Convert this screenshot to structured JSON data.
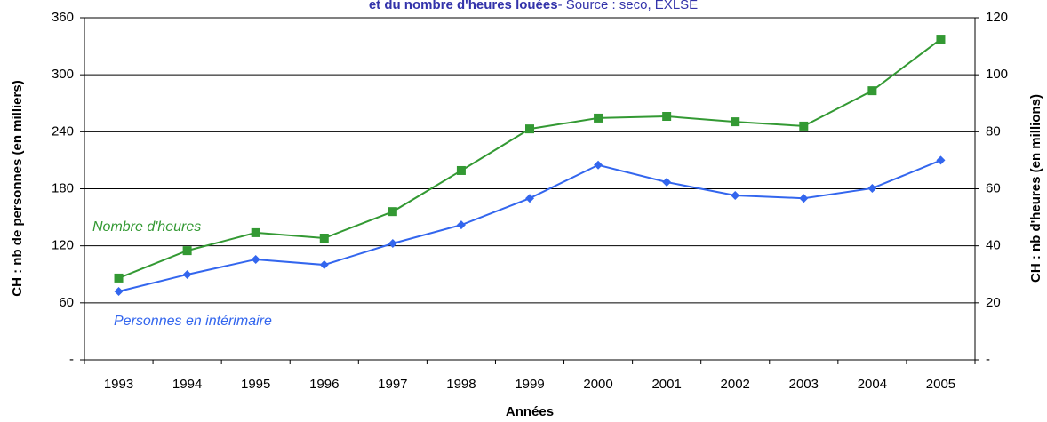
{
  "chart_data": {
    "type": "line",
    "title": "et du nombre d'heures louées",
    "subtitle": "- Source : seco, EXLSE",
    "x_label": "Années",
    "y_label": "CH : nb de personnes (en milliers)",
    "y2_label": "CH : nb d'heures (en millions)",
    "categories": [
      "1993",
      "1994",
      "1995",
      "1996",
      "1997",
      "1998",
      "1999",
      "2000",
      "2001",
      "2002",
      "2003",
      "2004",
      "2005"
    ],
    "series": [
      {
        "name": "Nombre d'heures",
        "color": "#339933",
        "axis": "y2",
        "marker": "square",
        "values": [
          28.7,
          38.3,
          44.6,
          42.7,
          52.0,
          66.4,
          81.0,
          84.8,
          85.4,
          83.5,
          82.0,
          94.4,
          112.5
        ]
      },
      {
        "name": "Personnes en intérimaire",
        "color": "#3366ee",
        "axis": "y",
        "marker": "diamond",
        "values": [
          72,
          89.8,
          105.7,
          100,
          122.5,
          142,
          170,
          205,
          187,
          173,
          170,
          180.5,
          210
        ]
      }
    ],
    "ylim": [
      0,
      360
    ],
    "yticks": [
      {
        "value": 0,
        "label": "-"
      },
      60,
      120,
      180,
      240,
      300,
      360
    ],
    "y2lim": [
      0,
      120
    ],
    "y2ticks": [
      {
        "value": 0,
        "label": "-"
      },
      20,
      40,
      60,
      80,
      100,
      120
    ],
    "grid": true
  }
}
